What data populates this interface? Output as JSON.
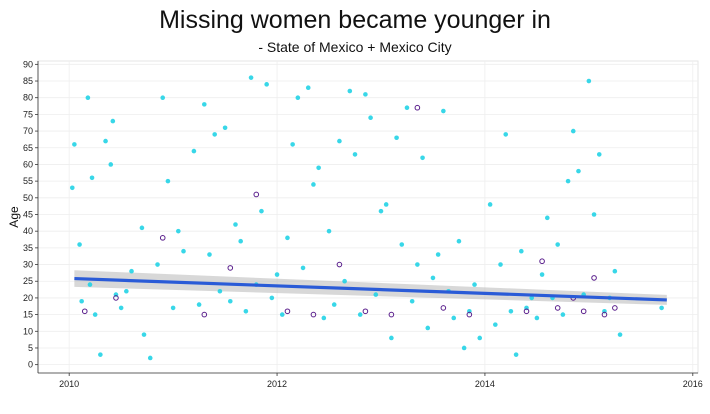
{
  "chart_data": {
    "type": "scatter",
    "title": "Missing women became younger in",
    "subtitle": "- State of Mexico + Mexico City",
    "xlabel": "",
    "ylabel": "Age",
    "xlim": [
      2009.7,
      2016.05
    ],
    "ylim": [
      -2.5,
      91
    ],
    "x_ticks": [
      2010,
      2012,
      2014,
      2016
    ],
    "y_ticks": [
      0,
      5,
      10,
      15,
      20,
      25,
      30,
      35,
      40,
      45,
      50,
      55,
      60,
      65,
      70,
      75,
      80,
      85,
      90
    ],
    "grid": true,
    "point_color": "#22d3e6",
    "overlap_color": "#5a1f8c",
    "trend_color": "#2a5bd7",
    "band_color": "#b8b8b8",
    "trend": {
      "x": [
        2010.05,
        2015.75
      ],
      "y": [
        25.8,
        19.4
      ],
      "band_start": 2.5,
      "band_end": 1.5
    },
    "series": [
      {
        "x": [
          2010.03,
          2010.05,
          2010.1,
          2010.12,
          2010.18,
          2010.2,
          2010.22,
          2010.25,
          2010.3,
          2010.35,
          2010.4,
          2010.42,
          2010.45,
          2010.5,
          2010.55,
          2010.6,
          2010.7,
          2010.72,
          2010.78,
          2010.85,
          2010.9,
          2010.95,
          2011.0,
          2011.05,
          2011.1,
          2011.2,
          2011.25,
          2011.3,
          2011.35,
          2011.4,
          2011.45,
          2011.5,
          2011.55,
          2011.6,
          2011.65,
          2011.7,
          2011.75,
          2011.8,
          2011.85,
          2011.9,
          2011.95,
          2012.0,
          2012.05,
          2012.1,
          2012.15,
          2012.2,
          2012.25,
          2012.3,
          2012.35,
          2012.4,
          2012.45,
          2012.5,
          2012.55,
          2012.6,
          2012.65,
          2012.7,
          2012.75,
          2012.8,
          2012.85,
          2012.9,
          2012.95,
          2013.0,
          2013.05,
          2013.1,
          2013.15,
          2013.2,
          2013.25,
          2013.3,
          2013.35,
          2013.4,
          2013.45,
          2013.5,
          2013.55,
          2013.6,
          2013.65,
          2013.7,
          2013.75,
          2013.8,
          2013.85,
          2013.9,
          2013.95,
          2014.05,
          2014.1,
          2014.15,
          2014.2,
          2014.25,
          2014.3,
          2014.35,
          2014.4,
          2014.45,
          2014.5,
          2014.55,
          2014.6,
          2014.65,
          2014.7,
          2014.75,
          2014.8,
          2014.85,
          2014.9,
          2014.95,
          2015.0,
          2015.05,
          2015.1,
          2015.15,
          2015.2,
          2015.25,
          2015.3,
          2015.7
        ],
        "y": [
          53,
          66,
          36,
          19,
          80,
          24,
          56,
          15,
          3,
          67,
          60,
          73,
          21,
          17,
          22,
          28,
          41,
          9,
          2,
          30,
          80,
          55,
          17,
          40,
          34,
          64,
          18,
          78,
          33,
          69,
          22,
          71,
          19,
          42,
          37,
          16,
          86,
          24,
          46,
          84,
          20,
          27,
          15,
          38,
          66,
          80,
          29,
          83,
          54,
          59,
          14,
          40,
          18,
          67,
          25,
          82,
          63,
          15,
          81,
          74,
          21,
          46,
          48,
          8,
          68,
          36,
          77,
          19,
          30,
          62,
          11,
          26,
          33,
          76,
          22,
          14,
          37,
          5,
          16,
          24,
          8,
          48,
          12,
          30,
          69,
          16,
          3,
          34,
          17,
          20,
          14,
          27,
          44,
          20,
          36,
          15,
          55,
          70,
          58,
          21,
          85,
          45,
          63,
          16,
          20,
          28,
          9,
          17
        ]
      },
      {
        "x": [
          2010.15,
          2010.45,
          2010.9,
          2011.3,
          2011.55,
          2011.8,
          2012.1,
          2012.35,
          2012.6,
          2012.85,
          2013.1,
          2013.35,
          2013.6,
          2013.85,
          2014.4,
          2014.55,
          2014.7,
          2014.85,
          2014.95,
          2015.05,
          2015.15,
          2015.25
        ],
        "y": [
          16,
          20,
          38,
          15,
          29,
          51,
          16,
          15,
          30,
          16,
          15,
          77,
          17,
          15,
          16,
          31,
          17,
          20,
          16,
          26,
          15,
          17
        ]
      }
    ]
  }
}
